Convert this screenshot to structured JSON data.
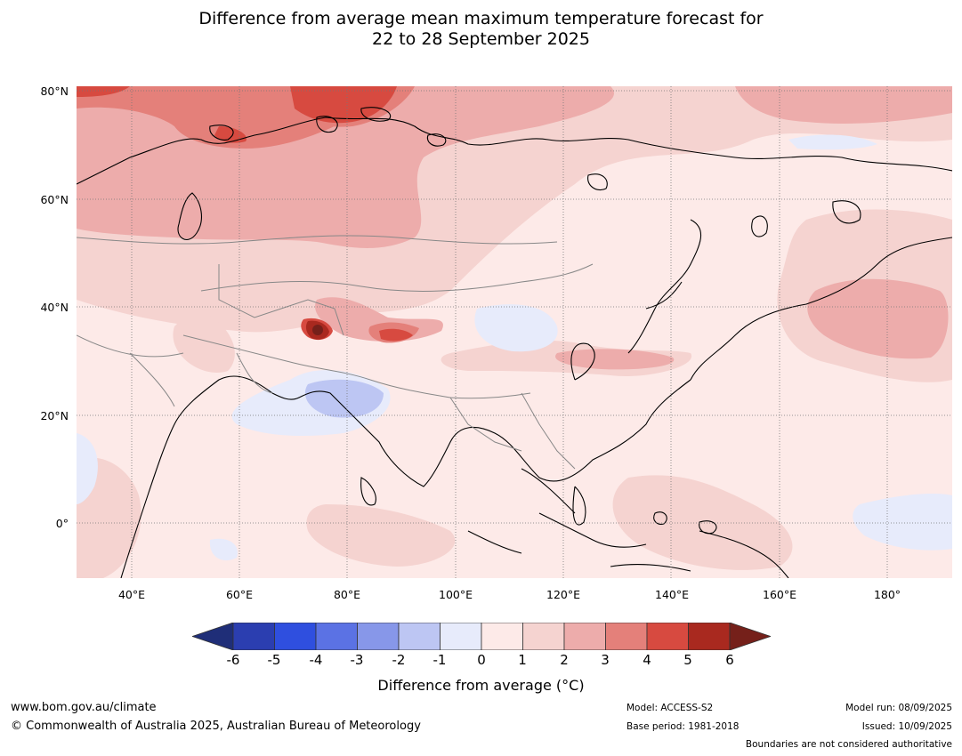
{
  "title_line1": "Difference from average mean maximum temperature forecast for",
  "title_line2": "22 to 28 September 2025",
  "map": {
    "lat_labels": [
      "80°N",
      "60°N",
      "40°N",
      "20°N",
      "0°"
    ],
    "lon_labels": [
      "40°E",
      "60°E",
      "80°E",
      "100°E",
      "120°E",
      "140°E",
      "160°E",
      "180°"
    ],
    "ocean_color": "#fdeae8",
    "land_outline_color": "#000000",
    "border_color": "#888888",
    "gridline_style": "dotted"
  },
  "colorbar": {
    "ticks": [
      "-6",
      "-5",
      "-4",
      "-3",
      "-2",
      "-1",
      "0",
      "1",
      "2",
      "3",
      "4",
      "5",
      "6"
    ],
    "colors": [
      "#1f2e78",
      "#2b3eb0",
      "#2f4fdf",
      "#5b72e4",
      "#8797e9",
      "#bdc6f3",
      "#e7ebfb",
      "#fdeae8",
      "#f5d3d0",
      "#edacab",
      "#e4807a",
      "#d74a40",
      "#a9291f",
      "#75201a"
    ],
    "label": "Difference from average (°C)"
  },
  "footer": {
    "website": "www.bom.gov.au/climate",
    "copyright": "© Commonwealth of Australia 2025, Australian Bureau of Meteorology",
    "model": "Model: ACCESS-S2",
    "base_period": "Base period: 1981-2018",
    "model_run": "Model run: 08/09/2025",
    "issued": "Issued: 10/09/2025",
    "boundaries_note": "Boundaries are not considered authoritative"
  }
}
